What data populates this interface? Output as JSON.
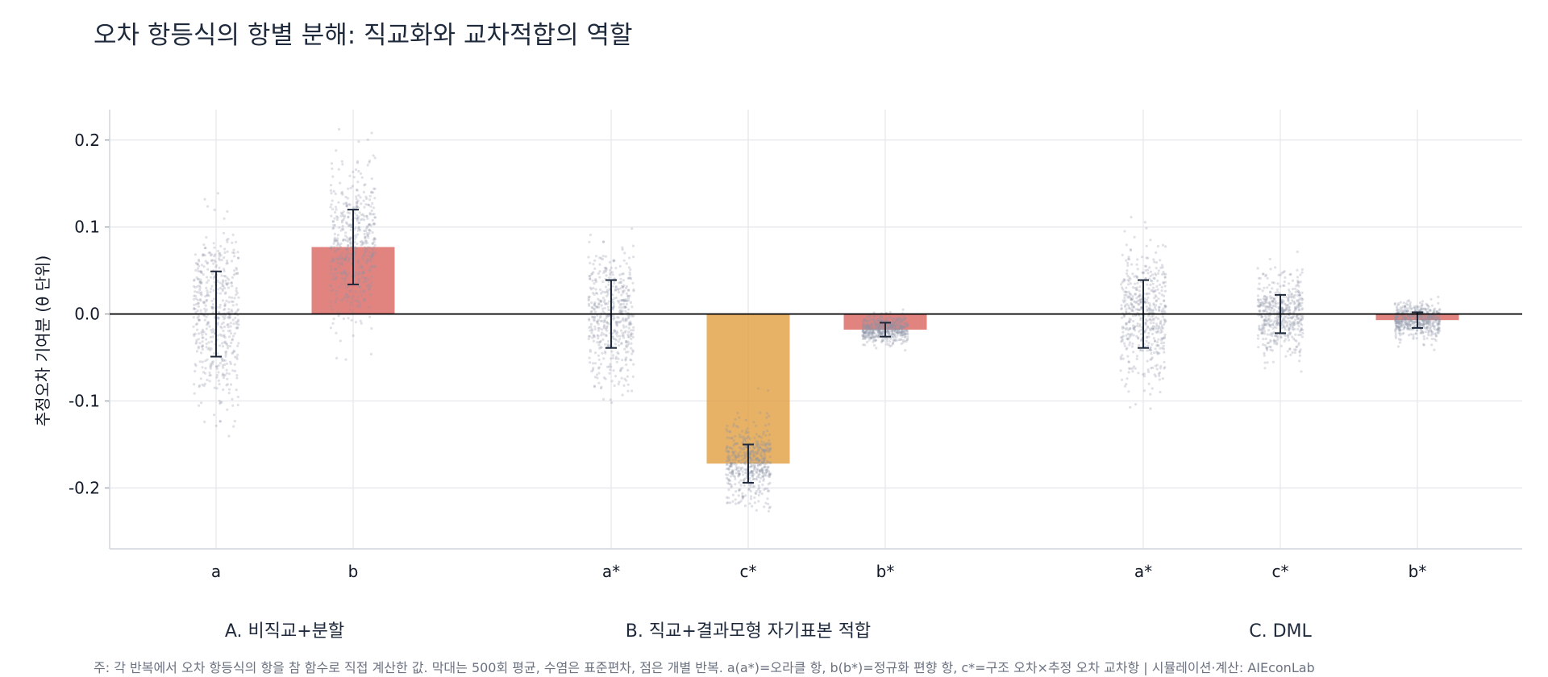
{
  "chart_data": {
    "type": "bar",
    "title": "오차 항등식의 항별 분해: 직교화와 교차적합의 역할",
    "ylabel": "추정오차 기여분 (θ 단위)",
    "xlabel": "",
    "ylim": [
      -0.27,
      0.235
    ],
    "yticks": [
      0.2,
      0.1,
      0.0,
      -0.1,
      -0.2
    ],
    "ytick_labels": [
      "0.2",
      "0.1",
      "0.0",
      "-0.1",
      "-0.2"
    ],
    "grid": true,
    "groups": [
      {
        "label": "A. 비직교+분할",
        "bars": [
          {
            "category": "a",
            "value": 0.0,
            "sd": 0.049,
            "color": "#dc6e6a",
            "spread": 0.05
          },
          {
            "category": "b",
            "value": 0.077,
            "sd": 0.043,
            "color": "#dc6e6a",
            "spread": 0.045
          }
        ]
      },
      {
        "label": "B. 직교+결과모형 자기표본 적합",
        "bars": [
          {
            "category": "a*",
            "value": 0.0,
            "sd": 0.039,
            "color": "#dc6e6a",
            "spread": 0.04
          },
          {
            "category": "c*",
            "value": -0.172,
            "sd": 0.022,
            "color": "#e3a34b",
            "spread": 0.022
          },
          {
            "category": "b*",
            "value": -0.018,
            "sd": 0.008,
            "color": "#dc6e6a",
            "spread": 0.008
          }
        ]
      },
      {
        "label": "C. DML",
        "bars": [
          {
            "category": "a*",
            "value": 0.0,
            "sd": 0.039,
            "color": "#dc6e6a",
            "spread": 0.04
          },
          {
            "category": "c*",
            "value": 0.0,
            "sd": 0.022,
            "color": "#e3a34b",
            "spread": 0.022
          },
          {
            "category": "b*",
            "value": -0.007,
            "sd": 0.009,
            "color": "#dc6e6a",
            "spread": 0.01
          }
        ]
      }
    ],
    "points_per_bar": 500,
    "colors": {
      "errorbar": "#1e293b",
      "points": "#8b95a7",
      "zero_line": "#000000",
      "grid": "#e5e7eb"
    }
  },
  "footnote": "주: 각 반복에서 오차 항등식의 항을 참 함수로 직접 계산한 값. 막대는 500회 평균, 수염은 표준편차, 점은 개별 반복. a(a*)=오라클 항, b(b*)=정규화 편향 항, c*=구조 오차×추정 오차 교차항  |  시뮬레이션·계산: AIEconLab"
}
